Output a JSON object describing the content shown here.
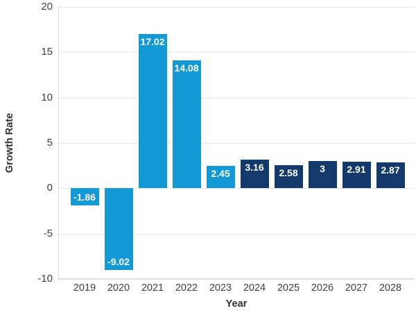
{
  "chart_data": {
    "type": "bar",
    "categories": [
      "2019",
      "2020",
      "2021",
      "2022",
      "2023",
      "2024",
      "2025",
      "2026",
      "2027",
      "2028"
    ],
    "values": [
      -1.86,
      -9.02,
      17.02,
      14.08,
      2.45,
      3.16,
      2.58,
      3,
      2.91,
      2.87
    ],
    "value_labels": [
      "-1.86",
      "-9.02",
      "17.02",
      "14.08",
      "2.45",
      "3.16",
      "2.58",
      "3",
      "2.91",
      "2.87"
    ],
    "bar_colors": [
      "#1299d6",
      "#1299d6",
      "#1299d6",
      "#1299d6",
      "#1299d6",
      "#14396b",
      "#14396b",
      "#14396b",
      "#14396b",
      "#14396b"
    ],
    "colors": {
      "historical_light_blue": "#1299d6",
      "forecast_navy": "#14396b",
      "gridline": "#e6e6e6",
      "axis_line": "#d9d9d9",
      "tick_text": "#3f3f3f",
      "bar_label_text": "#ffffff",
      "background": "#ffffff"
    },
    "title": "",
    "xlabel": "Year",
    "ylabel": "Growth Rate",
    "ylim": [
      -10,
      20
    ],
    "yticks": [
      20,
      15,
      10,
      5,
      0,
      -5,
      -10
    ],
    "grid": true,
    "legend": "none",
    "label_position": "inside-end"
  }
}
